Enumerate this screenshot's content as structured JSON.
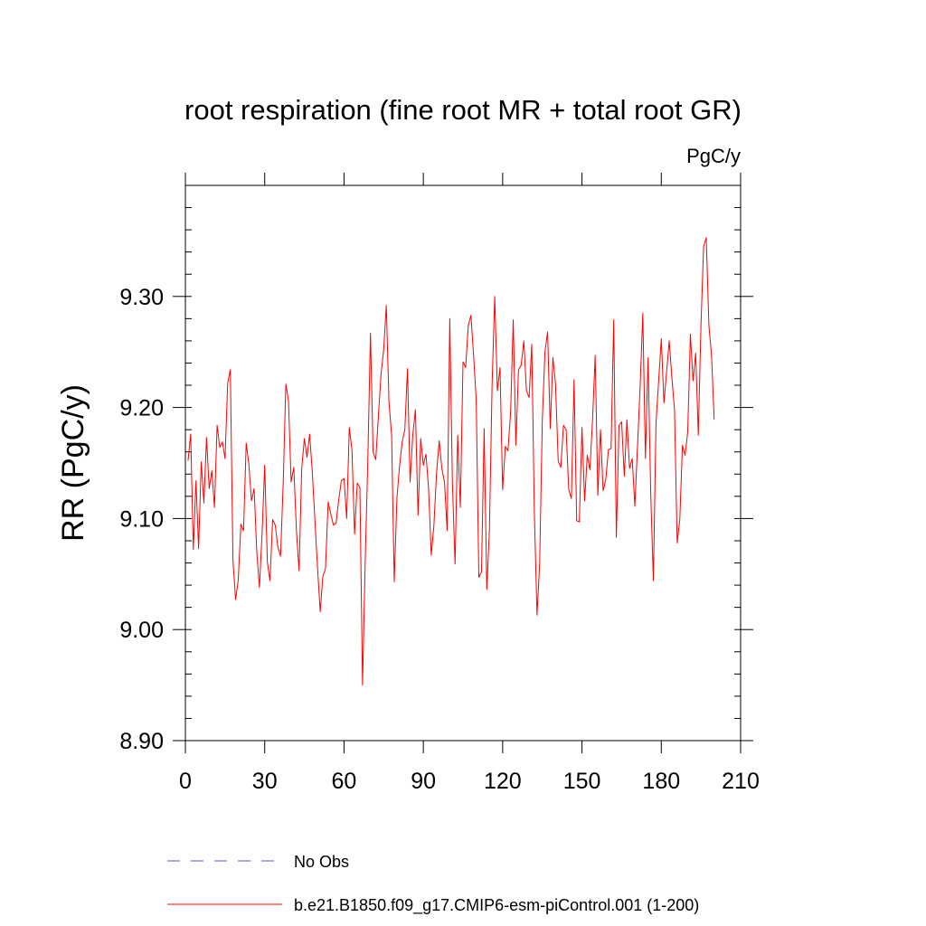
{
  "chart_data": {
    "type": "line",
    "title": "root respiration (fine root MR + total root GR)",
    "units": "PgC/y",
    "xlabel": "",
    "ylabel": "RR  (PgC/y)",
    "xlim": [
      0,
      210
    ],
    "ylim": [
      8.9,
      9.4
    ],
    "x_ticks": [
      0,
      30,
      60,
      90,
      120,
      150,
      180,
      210
    ],
    "x_tick_labels": [
      "0",
      "30",
      "60",
      "90",
      "120",
      "150",
      "180",
      "210"
    ],
    "y_ticks": [
      8.9,
      9.0,
      9.1,
      9.2,
      9.3
    ],
    "y_tick_labels": [
      "8.90",
      "9.00",
      "9.10",
      "9.20",
      "9.30"
    ],
    "legend_position": "bottom",
    "series": [
      {
        "name": "No Obs",
        "color": "#5555cc",
        "dashed": true,
        "x": [],
        "values": []
      },
      {
        "name": "b.e21.B1850.f09_g17.CMIP6-esm-piControl.001 (1-200)",
        "color": "#ff0000",
        "dashed": false,
        "x_start": 1,
        "values": [
          9.152,
          9.176,
          9.072,
          9.134,
          9.073,
          9.151,
          9.114,
          9.173,
          9.127,
          9.143,
          9.11,
          9.184,
          9.164,
          9.169,
          9.154,
          9.222,
          9.234,
          9.062,
          9.027,
          9.045,
          9.095,
          9.089,
          9.168,
          9.149,
          9.116,
          9.127,
          9.07,
          9.038,
          9.086,
          9.148,
          9.061,
          9.044,
          9.099,
          9.094,
          9.074,
          9.066,
          9.132,
          9.221,
          9.206,
          9.133,
          9.146,
          9.089,
          9.053,
          9.145,
          9.172,
          9.155,
          9.176,
          9.142,
          9.098,
          9.055,
          9.016,
          9.048,
          9.055,
          9.115,
          9.104,
          9.094,
          9.096,
          9.117,
          9.134,
          9.136,
          9.1,
          9.182,
          9.162,
          9.086,
          9.132,
          9.128,
          8.95,
          9.06,
          9.152,
          9.267,
          9.16,
          9.153,
          9.192,
          9.23,
          9.252,
          9.292,
          9.205,
          9.175,
          9.043,
          9.118,
          9.147,
          9.169,
          9.18,
          9.235,
          9.133,
          9.175,
          9.198,
          9.103,
          9.172,
          9.148,
          9.158,
          9.126,
          9.067,
          9.094,
          9.141,
          9.17,
          9.145,
          9.133,
          9.089,
          9.28,
          9.131,
          9.059,
          9.175,
          9.11,
          9.241,
          9.236,
          9.274,
          9.283,
          9.247,
          9.207,
          9.047,
          9.052,
          9.181,
          9.036,
          9.09,
          9.22,
          9.3,
          9.215,
          9.236,
          9.126,
          9.165,
          9.161,
          9.195,
          9.279,
          9.166,
          9.234,
          9.238,
          9.26,
          9.215,
          9.209,
          9.257,
          9.104,
          9.013,
          9.06,
          9.189,
          9.25,
          9.268,
          9.181,
          9.245,
          9.221,
          9.152,
          9.146,
          9.184,
          9.18,
          9.126,
          9.118,
          9.225,
          9.098,
          9.097,
          9.182,
          9.116,
          9.157,
          9.144,
          9.189,
          9.247,
          9.121,
          9.18,
          9.125,
          9.135,
          9.162,
          9.163,
          9.279,
          9.083,
          9.184,
          9.187,
          9.138,
          9.189,
          9.145,
          9.154,
          9.111,
          9.165,
          9.219,
          9.285,
          9.154,
          9.245,
          9.123,
          9.044,
          9.186,
          9.224,
          9.262,
          9.204,
          9.232,
          9.26,
          9.227,
          9.198,
          9.078,
          9.099,
          9.166,
          9.157,
          9.178,
          9.266,
          9.224,
          9.249,
          9.175,
          9.274,
          9.345,
          9.353,
          9.274,
          9.247,
          9.189
        ]
      }
    ]
  }
}
